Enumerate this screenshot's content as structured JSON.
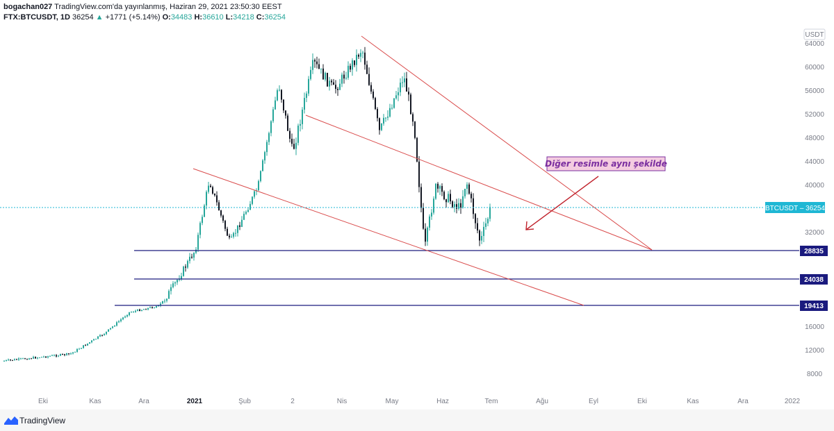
{
  "header": {
    "author": "bogachan027",
    "published": "TradingView.com'da yayınlanmış, Haziran 29, 2021 23:50:30 EEST",
    "symbol": "FTX:BTCUSDT, 1D",
    "last": "36254",
    "arrow": "▲",
    "change": "+1771 (+5.14%)",
    "o_label": "O:",
    "o": "34483",
    "h_label": "H:",
    "h": "36610",
    "l_label": "L:",
    "l": "34218",
    "c_label": "C:",
    "c": "36254"
  },
  "price_axis": {
    "unit": "USDT",
    "ticks": [
      "64000",
      "60000",
      "56000",
      "52000",
      "48000",
      "44000",
      "40000",
      "32000",
      "16000",
      "12000",
      "8000"
    ],
    "current_label": "BTCUSDT – 36254",
    "current_color": "#1fb7d4"
  },
  "time_axis": {
    "ticks": [
      "Eki",
      "Kas",
      "Ara",
      "2021",
      "Şub",
      "2",
      "Nis",
      "May",
      "Haz",
      "Tem",
      "Ağu",
      "Eyl",
      "Eki",
      "Kas",
      "Ara",
      "2022"
    ]
  },
  "levels": [
    {
      "label": "28835",
      "color": "#1a1a7e"
    },
    {
      "label": "24038",
      "color": "#1a1a7e"
    },
    {
      "label": "19413",
      "color": "#1a1a7e"
    }
  ],
  "annotation": {
    "text": "Diğer resimle aynı şekilde",
    "color": "#7b2fa0",
    "bg": "#f4cce0"
  },
  "colors": {
    "up": "#26a69a",
    "down": "#131722",
    "trendline": "#d94a4a"
  },
  "footer": {
    "brand": "TradingView"
  }
}
